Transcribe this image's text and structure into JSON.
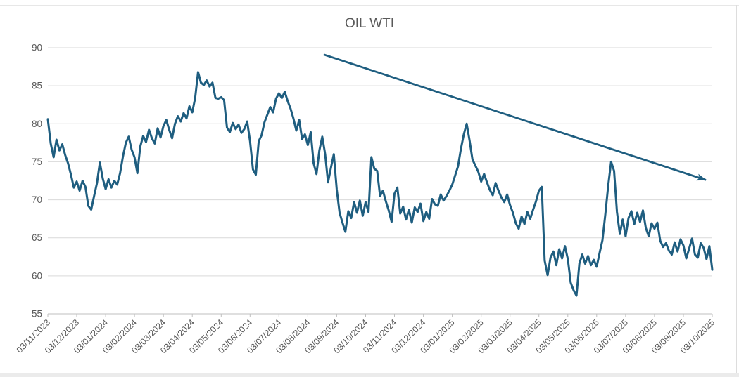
{
  "chart_data": {
    "type": "line",
    "title": "OIL WTI",
    "ylim": [
      55,
      90
    ],
    "y_ticks": [
      55,
      60,
      65,
      70,
      75,
      80,
      85,
      90
    ],
    "x_tick_labels": [
      "03/11/2023",
      "03/12/2023",
      "03/01/2024",
      "03/02/2024",
      "03/03/2024",
      "03/04/2024",
      "03/05/2024",
      "03/06/2024",
      "03/07/2024",
      "03/08/2024",
      "03/09/2024",
      "03/10/2024",
      "03/11/2024",
      "03/12/2024",
      "03/01/2025",
      "03/02/2025",
      "03/03/2025",
      "03/04/2025",
      "03/05/2025",
      "03/06/2025",
      "03/07/2025",
      "03/08/2025",
      "03/09/2025",
      "03/10/2025"
    ],
    "grid": "horizontal",
    "legend": "none",
    "series": [
      {
        "name": "OIL WTI",
        "color": "#1f5e80",
        "values": [
          80.6,
          77.4,
          75.6,
          77.9,
          76.5,
          77.3,
          75.9,
          74.8,
          73.3,
          71.6,
          72.4,
          71.2,
          72.5,
          71.7,
          69.2,
          68.7,
          70.5,
          72.2,
          74.9,
          72.8,
          71.4,
          72.7,
          71.6,
          72.5,
          72.0,
          73.5,
          75.7,
          77.5,
          78.3,
          76.6,
          75.6,
          73.5,
          77.0,
          78.4,
          77.6,
          79.2,
          78.1,
          77.4,
          79.4,
          78.2,
          79.7,
          80.5,
          79.2,
          78.1,
          80.0,
          81.0,
          80.3,
          81.4,
          80.7,
          82.3,
          81.5,
          83.4,
          86.8,
          85.4,
          85.1,
          85.7,
          84.9,
          85.4,
          83.4,
          83.3,
          83.5,
          83.1,
          79.5,
          78.9,
          80.1,
          79.3,
          79.9,
          78.8,
          79.3,
          80.3,
          77.7,
          74.0,
          73.3,
          77.7,
          78.5,
          80.2,
          81.2,
          82.2,
          81.5,
          83.3,
          84.0,
          83.4,
          84.2,
          83.0,
          82.0,
          80.7,
          79.1,
          80.5,
          78.0,
          78.6,
          77.2,
          78.9,
          74.8,
          73.4,
          76.5,
          78.3,
          76.0,
          72.3,
          74.2,
          76.0,
          71.4,
          68.3,
          67.0,
          65.8,
          68.5,
          67.6,
          69.7,
          68.3,
          69.9,
          67.9,
          69.7,
          68.4,
          75.6,
          74.1,
          73.8,
          70.5,
          71.2,
          69.8,
          68.6,
          67.1,
          70.8,
          71.6,
          68.2,
          69.1,
          67.4,
          68.7,
          67.0,
          69.0,
          68.4,
          69.5,
          67.2,
          68.4,
          67.5,
          70.1,
          69.4,
          69.2,
          70.7,
          69.9,
          70.5,
          71.2,
          72.0,
          73.2,
          74.4,
          76.7,
          78.6,
          80.0,
          77.8,
          75.3,
          74.5,
          73.7,
          72.4,
          73.4,
          72.3,
          71.3,
          70.6,
          72.2,
          71.2,
          70.3,
          69.7,
          70.7,
          69.3,
          68.3,
          66.9,
          66.2,
          67.8,
          66.8,
          68.4,
          67.5,
          68.7,
          69.8,
          71.2,
          71.7,
          62.0,
          60.1,
          62.4,
          63.2,
          61.4,
          63.5,
          62.3,
          63.9,
          62.2,
          59.1,
          58.1,
          57.4,
          61.6,
          62.8,
          61.6,
          62.6,
          61.4,
          62.1,
          61.2,
          63.0,
          64.7,
          68.1,
          71.9,
          75.0,
          73.8,
          68.4,
          65.5,
          67.4,
          65.2,
          67.6,
          68.5,
          66.8,
          68.3,
          67.1,
          68.6,
          66.3,
          65.2,
          66.9,
          66.2,
          67.0,
          64.6,
          63.8,
          64.3,
          63.3,
          62.8,
          64.4,
          63.2,
          64.8,
          64.0,
          62.3,
          63.6,
          64.9,
          62.8,
          62.4,
          64.3,
          63.7,
          62.2,
          63.9,
          60.8
        ]
      }
    ],
    "annotation_arrow": {
      "x1_frac": 0.415,
      "y1_value": 89.1,
      "x2_frac": 0.9905,
      "y2_value": 72.6,
      "color": "#1f5e80"
    }
  },
  "styles": {
    "title_color": "#595959",
    "axis_label_color": "#595959",
    "gridline_color": "#d9d9d9",
    "axis_line_color": "#bfbfbf",
    "background": "#ffffff"
  }
}
